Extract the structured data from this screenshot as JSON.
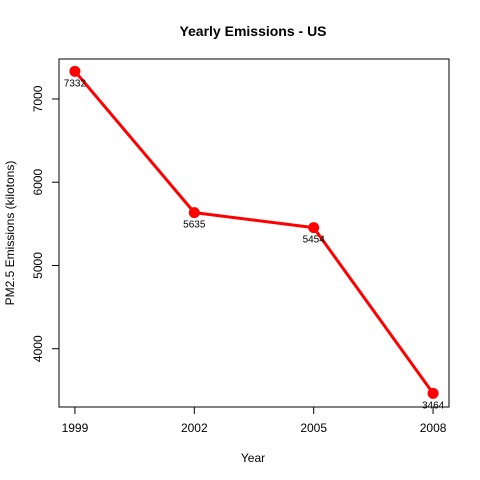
{
  "chart_data": {
    "type": "line",
    "title": "Yearly Emissions - US",
    "xlabel": "Year",
    "ylabel": "PM2.5 Emissions (kilotons)",
    "x": [
      1999,
      2002,
      2005,
      2008
    ],
    "xticks": [
      "1999",
      "2002",
      "2005",
      "2008"
    ],
    "yticks": [
      4000,
      5000,
      6000,
      7000
    ],
    "ylim": [
      3300,
      7480
    ],
    "xlim": [
      1998.6,
      2008.4
    ],
    "grid": false,
    "legend": "none",
    "series": [
      {
        "values": [
          7332,
          5635,
          5454,
          3464
        ],
        "labels": [
          "7332",
          "5635",
          "5454",
          "3464"
        ],
        "color": "#ff0000"
      }
    ]
  }
}
